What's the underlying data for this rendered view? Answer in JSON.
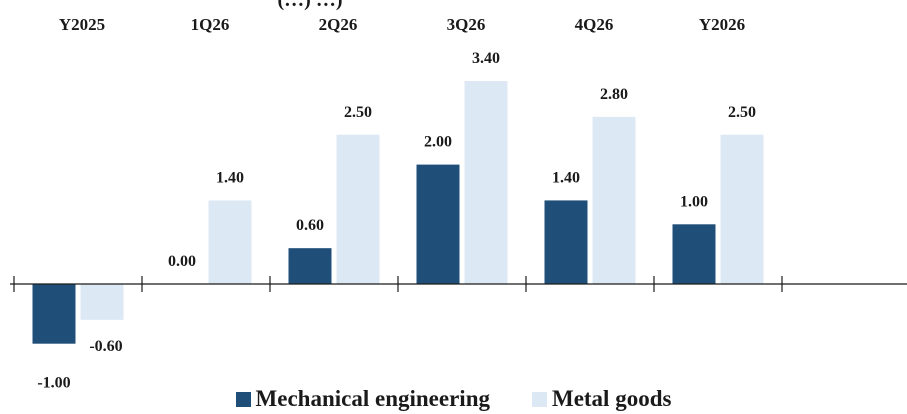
{
  "colors": {
    "mechanical": "#1f4e79",
    "metal": "#dde8f5",
    "axis": "#1a1a1a",
    "text": "#1a1a1a"
  },
  "chart_data": {
    "type": "bar",
    "title_fragment": "(…) …)",
    "categories": [
      "Y2025",
      "1Q26",
      "2Q26",
      "3Q26",
      "4Q26",
      "Y2026"
    ],
    "series": [
      {
        "name": "Mechanical engineering",
        "values": [
          -1.0,
          0.0,
          0.6,
          2.0,
          1.4,
          1.0
        ],
        "labels": [
          "-1.00",
          "0.00",
          "0.60",
          "2.00",
          "1.40",
          "1.00"
        ]
      },
      {
        "name": "Metal goods",
        "values": [
          -0.6,
          1.4,
          2.5,
          3.4,
          2.8,
          2.5
        ],
        "labels": [
          "-0.60",
          "1.40",
          "2.50",
          "3.40",
          "2.80",
          "2.50"
        ]
      }
    ],
    "ylim": [
      -1.2,
      3.4
    ],
    "grid": false,
    "category_labels_position": "top",
    "legend_position": "bottom-center"
  }
}
